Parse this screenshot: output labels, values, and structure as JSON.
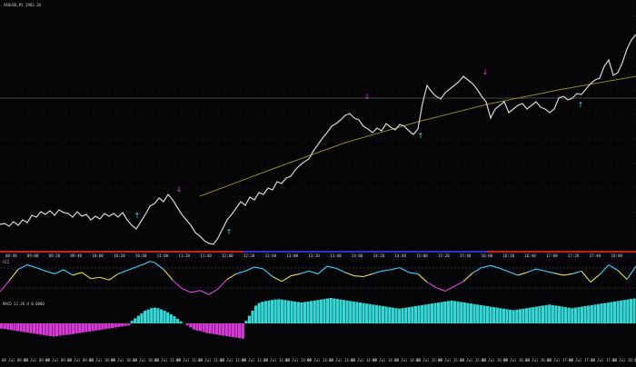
{
  "chart_header": {
    "symbol_info": "XAUUSD,M1 1983.20",
    "indicator_pane_1_label": "CCI",
    "indicator_pane_2_label": "MACD 12,26,9 0.0000"
  },
  "time_axis": {
    "labels_main": [
      "08:40",
      "09:00",
      "09:20",
      "09:40",
      "10:00",
      "10:20",
      "10:40",
      "11:00",
      "11:20",
      "11:40",
      "12:00",
      "12:20",
      "12:40",
      "13:00",
      "13:20",
      "13:40",
      "14:00",
      "14:20",
      "14:40",
      "15:00",
      "15:20",
      "15:40",
      "16:00",
      "16:20",
      "16:40",
      "17:00",
      "17:20",
      "17:40",
      "18:00"
    ],
    "labels_bottom": [
      "08 Jul 08:40",
      "08 Jul 09:00",
      "08 Jul 09:20",
      "08 Jul 09:40",
      "08 Jul 10:00",
      "08 Jul 10:20",
      "08 Jul 10:40",
      "08 Jul 11:00",
      "08 Jul 11:20",
      "08 Jul 11:40",
      "08 Jul 12:00",
      "08 Jul 12:20",
      "08 Jul 12:40",
      "08 Jul 13:00",
      "08 Jul 13:20",
      "08 Jul 13:40",
      "08 Jul 14:00",
      "08 Jul 14:20",
      "08 Jul 14:40",
      "08 Jul 15:00",
      "08 Jul 15:20",
      "08 Jul 15:40",
      "08 Jul 16:00",
      "08 Jul 16:20",
      "08 Jul 16:40",
      "08 Jul 17:00",
      "08 Jul 17:20",
      "08 Jul 17:40",
      "08 Jul 18:00"
    ]
  },
  "colors": {
    "background": "#050508",
    "grid": "#2a2a32",
    "price_line": "#d7d7d7",
    "trend_curve": "#8c8a2a",
    "horizontal_line": "#5a5a5a",
    "buy_arrow": "#38d8e8",
    "sell_arrow": "#e040e0",
    "macd_positive": "#37d7d6",
    "macd_negative": "#d83ad8",
    "cci_up": "#45d0ff",
    "cci_down": "#e045e0",
    "cci_mid": "#e5e046",
    "session_red": "#c02020",
    "session_blue": "#3030c8"
  },
  "chart_data": {
    "type": "line",
    "title": "",
    "price_path": [
      [
        0,
        0.25
      ],
      [
        5,
        0.26
      ],
      [
        10,
        0.23
      ],
      [
        15,
        0.28
      ],
      [
        20,
        0.24
      ],
      [
        25,
        0.3
      ],
      [
        30,
        0.27
      ],
      [
        35,
        0.35
      ],
      [
        40,
        0.33
      ],
      [
        45,
        0.39
      ],
      [
        50,
        0.36
      ],
      [
        55,
        0.4
      ],
      [
        60,
        0.35
      ],
      [
        65,
        0.41
      ],
      [
        70,
        0.38
      ],
      [
        75,
        0.37
      ],
      [
        80,
        0.33
      ],
      [
        85,
        0.39
      ],
      [
        90,
        0.34
      ],
      [
        95,
        0.36
      ],
      [
        100,
        0.3
      ],
      [
        105,
        0.34
      ],
      [
        110,
        0.31
      ],
      [
        115,
        0.37
      ],
      [
        120,
        0.34
      ],
      [
        125,
        0.37
      ],
      [
        130,
        0.33
      ],
      [
        135,
        0.38
      ],
      [
        140,
        0.3
      ],
      [
        145,
        0.24
      ],
      [
        150,
        0.2
      ],
      [
        155,
        0.28
      ],
      [
        160,
        0.36
      ],
      [
        165,
        0.45
      ],
      [
        170,
        0.48
      ],
      [
        175,
        0.54
      ],
      [
        180,
        0.5
      ],
      [
        185,
        0.58
      ],
      [
        190,
        0.52
      ],
      [
        195,
        0.44
      ],
      [
        200,
        0.36
      ],
      [
        205,
        0.3
      ],
      [
        210,
        0.24
      ],
      [
        215,
        0.16
      ],
      [
        220,
        0.12
      ],
      [
        225,
        0.07
      ],
      [
        230,
        0.04
      ],
      [
        235,
        0.03
      ],
      [
        240,
        0.1
      ],
      [
        245,
        0.2
      ],
      [
        250,
        0.3
      ],
      [
        255,
        0.36
      ],
      [
        260,
        0.43
      ],
      [
        265,
        0.5
      ],
      [
        270,
        0.46
      ],
      [
        275,
        0.55
      ],
      [
        280,
        0.52
      ],
      [
        285,
        0.6
      ],
      [
        290,
        0.58
      ],
      [
        295,
        0.65
      ],
      [
        300,
        0.63
      ],
      [
        305,
        0.72
      ],
      [
        310,
        0.7
      ],
      [
        315,
        0.76
      ],
      [
        320,
        0.78
      ],
      [
        325,
        0.85
      ],
      [
        330,
        0.9
      ],
      [
        335,
        0.94
      ],
      [
        340,
        0.97
      ],
      [
        345,
        1.06
      ],
      [
        350,
        1.13
      ],
      [
        355,
        1.2
      ],
      [
        360,
        1.26
      ],
      [
        365,
        1.33
      ],
      [
        370,
        1.36
      ],
      [
        375,
        1.4
      ],
      [
        380,
        1.45
      ],
      [
        385,
        1.47
      ],
      [
        390,
        1.42
      ],
      [
        395,
        1.4
      ],
      [
        400,
        1.33
      ],
      [
        405,
        1.3
      ],
      [
        410,
        1.26
      ],
      [
        415,
        1.31
      ],
      [
        420,
        1.28
      ],
      [
        425,
        1.36
      ],
      [
        430,
        1.32
      ],
      [
        435,
        1.29
      ],
      [
        440,
        1.35
      ],
      [
        445,
        1.33
      ],
      [
        450,
        1.28
      ],
      [
        455,
        1.24
      ],
      [
        460,
        1.3
      ],
      [
        465,
        1.58
      ],
      [
        470,
        1.78
      ],
      [
        475,
        1.71
      ],
      [
        480,
        1.66
      ],
      [
        485,
        1.63
      ],
      [
        490,
        1.7
      ],
      [
        495,
        1.74
      ],
      [
        500,
        1.78
      ],
      [
        505,
        1.82
      ],
      [
        510,
        1.88
      ],
      [
        515,
        1.84
      ],
      [
        520,
        1.8
      ],
      [
        525,
        1.74
      ],
      [
        530,
        1.66
      ],
      [
        535,
        1.6
      ],
      [
        540,
        1.42
      ],
      [
        545,
        1.52
      ],
      [
        550,
        1.56
      ],
      [
        555,
        1.6
      ],
      [
        560,
        1.48
      ],
      [
        565,
        1.52
      ],
      [
        570,
        1.56
      ],
      [
        575,
        1.58
      ],
      [
        580,
        1.52
      ],
      [
        585,
        1.56
      ],
      [
        590,
        1.6
      ],
      [
        595,
        1.54
      ],
      [
        600,
        1.52
      ],
      [
        605,
        1.48
      ],
      [
        610,
        1.52
      ],
      [
        615,
        1.64
      ],
      [
        620,
        1.66
      ],
      [
        625,
        1.62
      ],
      [
        630,
        1.64
      ],
      [
        635,
        1.69
      ],
      [
        640,
        1.68
      ],
      [
        645,
        1.74
      ],
      [
        650,
        1.8
      ],
      [
        655,
        1.84
      ],
      [
        660,
        1.86
      ],
      [
        665,
        1.99
      ],
      [
        670,
        2.06
      ],
      [
        675,
        1.89
      ],
      [
        680,
        1.92
      ],
      [
        685,
        2.03
      ],
      [
        690,
        2.18
      ],
      [
        695,
        2.28
      ],
      [
        700,
        2.34
      ]
    ],
    "trend_curve": [
      [
        220,
        0.56
      ],
      [
        300,
        0.86
      ],
      [
        380,
        1.15
      ],
      [
        460,
        1.38
      ],
      [
        540,
        1.58
      ],
      [
        620,
        1.74
      ],
      [
        700,
        1.88
      ]
    ],
    "buy_signals": [
      [
        151,
        0.32
      ],
      [
        252,
        0.14
      ],
      [
        463,
        1.2
      ],
      [
        639,
        1.54
      ]
    ],
    "sell_signals": [
      [
        197,
        0.61
      ],
      [
        404,
        1.63
      ],
      [
        534,
        1.9
      ]
    ],
    "cci_path": [
      [
        0,
        0.1
      ],
      [
        10,
        0.42
      ],
      [
        20,
        0.75
      ],
      [
        30,
        0.88
      ],
      [
        40,
        0.8
      ],
      [
        50,
        0.7
      ],
      [
        60,
        0.62
      ],
      [
        70,
        0.74
      ],
      [
        80,
        0.58
      ],
      [
        90,
        0.66
      ],
      [
        100,
        0.48
      ],
      [
        110,
        0.52
      ],
      [
        120,
        0.44
      ],
      [
        130,
        0.62
      ],
      [
        140,
        0.72
      ],
      [
        150,
        0.82
      ],
      [
        160,
        0.92
      ],
      [
        165,
        0.98
      ],
      [
        170,
        0.95
      ],
      [
        180,
        0.75
      ],
      [
        190,
        0.44
      ],
      [
        200,
        0.2
      ],
      [
        210,
        0.08
      ],
      [
        220,
        0.14
      ],
      [
        230,
        0.02
      ],
      [
        240,
        0.18
      ],
      [
        250,
        0.46
      ],
      [
        260,
        0.62
      ],
      [
        270,
        0.7
      ],
      [
        280,
        0.82
      ],
      [
        290,
        0.76
      ],
      [
        300,
        0.54
      ],
      [
        310,
        0.4
      ],
      [
        320,
        0.56
      ],
      [
        330,
        0.62
      ],
      [
        340,
        0.7
      ],
      [
        350,
        0.62
      ],
      [
        360,
        0.84
      ],
      [
        370,
        0.78
      ],
      [
        380,
        0.66
      ],
      [
        390,
        0.56
      ],
      [
        400,
        0.54
      ],
      [
        410,
        0.62
      ],
      [
        420,
        0.7
      ],
      [
        430,
        0.74
      ],
      [
        440,
        0.8
      ],
      [
        450,
        0.66
      ],
      [
        460,
        0.62
      ],
      [
        470,
        0.38
      ],
      [
        480,
        0.22
      ],
      [
        490,
        0.12
      ],
      [
        500,
        0.26
      ],
      [
        510,
        0.4
      ],
      [
        520,
        0.64
      ],
      [
        530,
        0.8
      ],
      [
        540,
        0.86
      ],
      [
        550,
        0.78
      ],
      [
        560,
        0.68
      ],
      [
        570,
        0.58
      ],
      [
        580,
        0.66
      ],
      [
        590,
        0.76
      ],
      [
        600,
        0.7
      ],
      [
        610,
        0.64
      ],
      [
        620,
        0.58
      ],
      [
        630,
        0.62
      ],
      [
        640,
        0.7
      ],
      [
        650,
        0.38
      ],
      [
        660,
        0.6
      ],
      [
        670,
        0.88
      ],
      [
        680,
        0.72
      ],
      [
        690,
        0.46
      ],
      [
        700,
        0.84
      ]
    ],
    "macd_hist": [
      -0.2,
      -0.22,
      -0.24,
      -0.26,
      -0.28,
      -0.3,
      -0.32,
      -0.34,
      -0.36,
      -0.38,
      -0.4,
      -0.42,
      -0.44,
      -0.46,
      -0.48,
      -0.5,
      -0.52,
      -0.5,
      -0.48,
      -0.46,
      -0.45,
      -0.44,
      -0.42,
      -0.4,
      -0.38,
      -0.36,
      -0.34,
      -0.32,
      -0.3,
      -0.28,
      -0.26,
      -0.24,
      -0.22,
      -0.2,
      -0.18,
      -0.16,
      -0.14,
      -0.12,
      -0.1,
      -0.08,
      0.1,
      0.2,
      0.3,
      0.4,
      0.5,
      0.55,
      0.6,
      0.62,
      0.6,
      0.55,
      0.5,
      0.44,
      0.36,
      0.28,
      0.18,
      0.08,
      0.0,
      -0.08,
      -0.16,
      -0.24,
      -0.28,
      -0.3,
      -0.34,
      -0.38,
      -0.4,
      -0.42,
      -0.44,
      -0.46,
      -0.48,
      -0.5,
      -0.52,
      -0.54,
      -0.56,
      -0.58,
      -0.6,
      0.1,
      0.3,
      0.5,
      0.7,
      0.8,
      0.85,
      0.88,
      0.9,
      0.92,
      0.94,
      0.95,
      0.94,
      0.92,
      0.9,
      0.88,
      0.86,
      0.84,
      0.82,
      0.84,
      0.86,
      0.88,
      0.9,
      0.92,
      0.94,
      0.96,
      0.98,
      1.0,
      0.98,
      0.96,
      0.94,
      0.92,
      0.9,
      0.88,
      0.86,
      0.84,
      0.82,
      0.8,
      0.78,
      0.76,
      0.74,
      0.72,
      0.7,
      0.68,
      0.66,
      0.64,
      0.62,
      0.6,
      0.58,
      0.6,
      0.62,
      0.64,
      0.66,
      0.68,
      0.7,
      0.72,
      0.74,
      0.76,
      0.78,
      0.8,
      0.82,
      0.84,
      0.86,
      0.88,
      0.9,
      0.88,
      0.86,
      0.84,
      0.82,
      0.8,
      0.78,
      0.76,
      0.74,
      0.72,
      0.7,
      0.68,
      0.66,
      0.64,
      0.62,
      0.6,
      0.58,
      0.56,
      0.54,
      0.52,
      0.54,
      0.56,
      0.58,
      0.6,
      0.62,
      0.64,
      0.66,
      0.68,
      0.7,
      0.72,
      0.74,
      0.72,
      0.7,
      0.68,
      0.66,
      0.64,
      0.62,
      0.6,
      0.62,
      0.64,
      0.66,
      0.68,
      0.7,
      0.72,
      0.74,
      0.76,
      0.78,
      0.8,
      0.82,
      0.84,
      0.86,
      0.88,
      0.9,
      0.92,
      0.94,
      0.96,
      0.98
    ]
  }
}
